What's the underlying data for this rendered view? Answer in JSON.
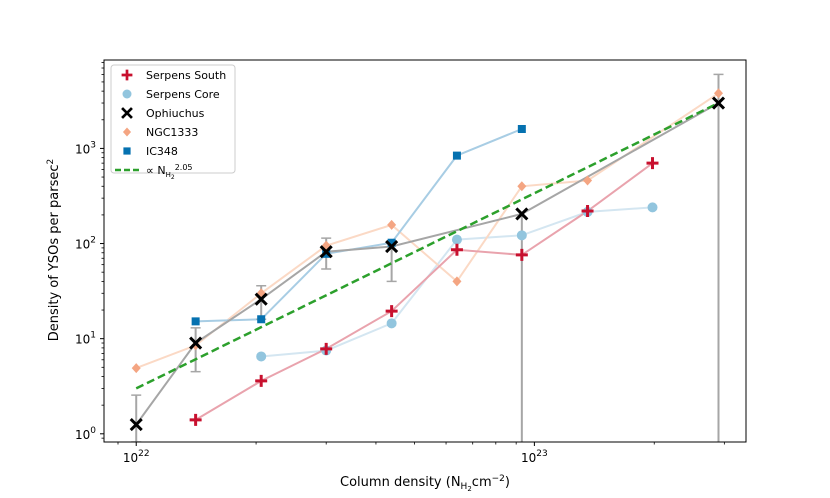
{
  "chart_data": {
    "type": "line",
    "scale": {
      "x": "log",
      "y": "log"
    },
    "xlabel_main": "Column density (N",
    "xlabel_sub": "H",
    "xlabel_subsub": "2",
    "xlabel_unit": "cm",
    "xlabel_exp": "−2",
    "xlabel_close": ")",
    "ylabel_main": "Density of YSOs per parsec",
    "ylabel_exp": "2",
    "xlim": [
      8.3e+21,
      3.4e+23
    ],
    "ylim": [
      0.82,
      8500
    ],
    "xticks": [
      {
        "value": 1e+22,
        "base": "10",
        "exp": "22"
      },
      {
        "value": 1e+23,
        "base": "10",
        "exp": "23"
      }
    ],
    "yticks": [
      {
        "value": 1,
        "base": "10",
        "exp": "0"
      },
      {
        "value": 10,
        "base": "10",
        "exp": "1"
      },
      {
        "value": 100,
        "base": "10",
        "exp": "2"
      },
      {
        "value": 1000,
        "base": "10",
        "exp": "3"
      }
    ],
    "series": [
      {
        "name": "Serpens South",
        "marker": "plus",
        "color": "#c8102e",
        "line_color": "#e9a3ad",
        "x": [
          1.41e+22,
          2.06e+22,
          3e+22,
          4.38e+22,
          6.39e+22,
          9.3e+22,
          1.36e+23,
          1.98e+23
        ],
        "y": [
          1.4,
          3.6,
          7.8,
          19.5,
          86,
          76,
          220,
          700
        ]
      },
      {
        "name": "Serpens Core",
        "marker": "circle",
        "color": "#92c5de",
        "line_color": "#d4e6f1",
        "x": [
          2.06e+22,
          3e+22,
          4.38e+22,
          6.39e+22,
          9.3e+22,
          1.36e+23,
          1.98e+23
        ],
        "y": [
          6.5,
          7.5,
          14.5,
          110,
          122,
          215,
          240
        ]
      },
      {
        "name": "Ophiuchus",
        "marker": "x",
        "color": "#000000",
        "line_color": "#a6a6a6",
        "x": [
          1e+22,
          1.41e+22,
          2.06e+22,
          3e+22,
          4.38e+22,
          9.3e+22,
          2.9e+23
        ],
        "y": [
          1.25,
          9.0,
          26,
          82,
          93,
          205,
          3000
        ],
        "err_low": [
          0.45,
          4.5,
          10,
          28,
          53,
          205,
          3000
        ],
        "err_high": [
          1.3,
          4.0,
          10,
          32,
          13,
          0,
          3000
        ]
      },
      {
        "name": "NGC1333",
        "marker": "diamond",
        "color": "#f4a582",
        "line_color": "#fbd9c5",
        "x": [
          1e+22,
          1.41e+22,
          2.06e+22,
          3e+22,
          4.38e+22,
          6.39e+22,
          9.3e+22,
          1.36e+23,
          2.9e+23
        ],
        "y": [
          4.9,
          8.5,
          30,
          95,
          157,
          40,
          400,
          460,
          3800
        ]
      },
      {
        "name": "IC348",
        "marker": "square",
        "color": "#0571b0",
        "line_color": "#a8cde4",
        "x": [
          1.41e+22,
          2.06e+22,
          3e+22,
          4.38e+22,
          6.39e+22,
          9.3e+22
        ],
        "y": [
          15.2,
          16,
          78,
          102,
          840,
          1600
        ]
      }
    ],
    "fit": {
      "name": "∝ N",
      "sub": "H",
      "subsub": "2",
      "exp": "2.05",
      "color": "#2ca02c",
      "x": [
        1e+22,
        2.9e+23
      ],
      "y": [
        3.0,
        3000
      ]
    },
    "legend_position": "top-left"
  }
}
